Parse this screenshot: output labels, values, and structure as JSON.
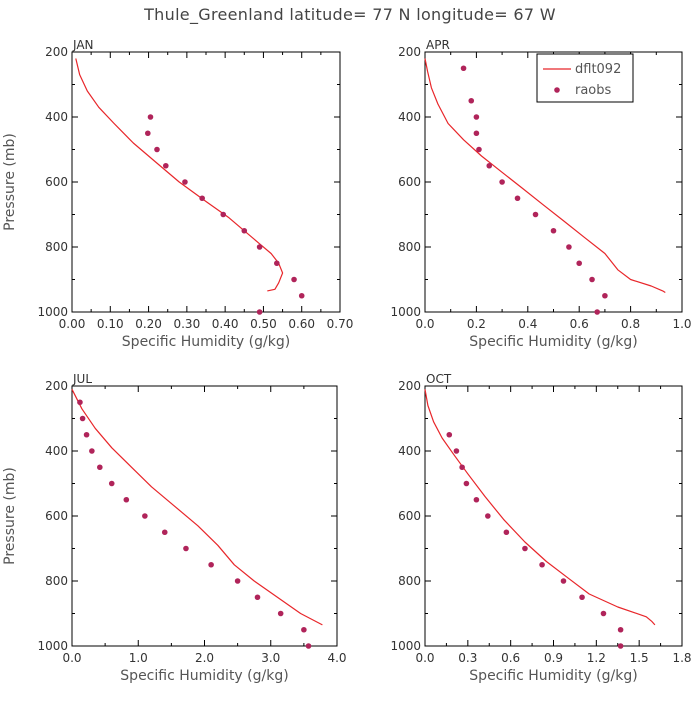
{
  "figure": {
    "title": "Thule_Greenland  latitude= 77 N longitude= 67 W",
    "colors": {
      "model": "#e8262a",
      "obs": "#b0245a",
      "axis": "#000000"
    }
  },
  "legend": {
    "model_label": "dflt092",
    "obs_label": "raobs"
  },
  "chart_data": [
    {
      "type": "line",
      "panel": "JAN",
      "xlabel": "Specific Humidity (g/kg)",
      "ylabel": "Pressure (mb)",
      "xlim": [
        0,
        0.7
      ],
      "ylim": [
        200,
        1000
      ],
      "y_inverted": true,
      "xticks": [
        0.0,
        0.1,
        0.2,
        0.3,
        0.4,
        0.5,
        0.6,
        0.7
      ],
      "xtick_labels": [
        "0.00",
        "0.10",
        "0.20",
        "0.30",
        "0.40",
        "0.50",
        "0.60",
        "0.70"
      ],
      "yticks": [
        200,
        400,
        600,
        800,
        1000
      ],
      "series": [
        {
          "name": "dflt092",
          "kind": "line",
          "points": [
            [
              0.01,
              220
            ],
            [
              0.02,
              270
            ],
            [
              0.04,
              320
            ],
            [
              0.07,
              370
            ],
            [
              0.11,
              420
            ],
            [
              0.16,
              480
            ],
            [
              0.22,
              540
            ],
            [
              0.28,
              600
            ],
            [
              0.35,
              660
            ],
            [
              0.41,
              710
            ],
            [
              0.45,
              750
            ],
            [
              0.49,
              790
            ],
            [
              0.52,
              820
            ],
            [
              0.54,
              850
            ],
            [
              0.55,
              880
            ],
            [
              0.54,
              910
            ],
            [
              0.53,
              930
            ],
            [
              0.51,
              935
            ]
          ]
        },
        {
          "name": "raobs",
          "kind": "scatter",
          "points": [
            [
              0.205,
              400
            ],
            [
              0.198,
              450
            ],
            [
              0.222,
              500
            ],
            [
              0.245,
              550
            ],
            [
              0.295,
              600
            ],
            [
              0.34,
              650
            ],
            [
              0.395,
              700
            ],
            [
              0.45,
              750
            ],
            [
              0.49,
              800
            ],
            [
              0.535,
              850
            ],
            [
              0.58,
              900
            ],
            [
              0.6,
              950
            ],
            [
              0.49,
              1000
            ]
          ]
        }
      ]
    },
    {
      "type": "line",
      "panel": "APR",
      "xlabel": "Specific Humidity (g/kg)",
      "ylabel": "",
      "xlim": [
        0,
        1.0
      ],
      "ylim": [
        200,
        1000
      ],
      "y_inverted": true,
      "xticks": [
        0.0,
        0.2,
        0.4,
        0.6,
        0.8,
        1.0
      ],
      "xtick_labels": [
        "0.0",
        "0.2",
        "0.4",
        "0.6",
        "0.8",
        "1.0"
      ],
      "yticks": [
        200,
        400,
        600,
        800,
        1000
      ],
      "series": [
        {
          "name": "dflt092",
          "kind": "line",
          "points": [
            [
              0.0,
              220
            ],
            [
              0.01,
              260
            ],
            [
              0.025,
              310
            ],
            [
              0.05,
              360
            ],
            [
              0.09,
              420
            ],
            [
              0.15,
              470
            ],
            [
              0.22,
              520
            ],
            [
              0.3,
              570
            ],
            [
              0.38,
              620
            ],
            [
              0.46,
              670
            ],
            [
              0.54,
              720
            ],
            [
              0.62,
              770
            ],
            [
              0.7,
              820
            ],
            [
              0.75,
              870
            ],
            [
              0.8,
              900
            ],
            [
              0.88,
              920
            ],
            [
              0.925,
              935
            ],
            [
              0.935,
              940
            ]
          ]
        },
        {
          "name": "raobs",
          "kind": "scatter",
          "points": [
            [
              0.15,
              250
            ],
            [
              0.18,
              350
            ],
            [
              0.2,
              400
            ],
            [
              0.2,
              450
            ],
            [
              0.21,
              500
            ],
            [
              0.25,
              550
            ],
            [
              0.3,
              600
            ],
            [
              0.36,
              650
            ],
            [
              0.43,
              700
            ],
            [
              0.5,
              750
            ],
            [
              0.56,
              800
            ],
            [
              0.6,
              850
            ],
            [
              0.65,
              900
            ],
            [
              0.7,
              950
            ],
            [
              0.67,
              1000
            ]
          ]
        }
      ]
    },
    {
      "type": "line",
      "panel": "JUL",
      "xlabel": "Specific Humidity (g/kg)",
      "ylabel": "Pressure (mb)",
      "xlim": [
        0,
        4.0
      ],
      "ylim": [
        200,
        1000
      ],
      "y_inverted": true,
      "xticks": [
        0.0,
        1.0,
        2.0,
        3.0,
        4.0
      ],
      "xtick_labels": [
        "0.0",
        "1.0",
        "2.0",
        "3.0",
        "4.0"
      ],
      "yticks": [
        200,
        400,
        600,
        800,
        1000
      ],
      "series": [
        {
          "name": "dflt092",
          "kind": "line",
          "points": [
            [
              0.0,
              210
            ],
            [
              0.15,
              270
            ],
            [
              0.35,
              330
            ],
            [
              0.6,
              390
            ],
            [
              0.9,
              450
            ],
            [
              1.2,
              510
            ],
            [
              1.55,
              570
            ],
            [
              1.9,
              630
            ],
            [
              2.2,
              690
            ],
            [
              2.45,
              750
            ],
            [
              2.75,
              800
            ],
            [
              3.1,
              850
            ],
            [
              3.45,
              900
            ],
            [
              3.78,
              935
            ]
          ]
        },
        {
          "name": "raobs",
          "kind": "scatter",
          "points": [
            [
              0.12,
              250
            ],
            [
              0.16,
              300
            ],
            [
              0.22,
              350
            ],
            [
              0.3,
              400
            ],
            [
              0.42,
              450
            ],
            [
              0.6,
              500
            ],
            [
              0.82,
              550
            ],
            [
              1.1,
              600
            ],
            [
              1.4,
              650
            ],
            [
              1.72,
              700
            ],
            [
              2.1,
              750
            ],
            [
              2.5,
              800
            ],
            [
              2.8,
              850
            ],
            [
              3.15,
              900
            ],
            [
              3.5,
              950
            ],
            [
              3.57,
              1000
            ]
          ]
        }
      ]
    },
    {
      "type": "line",
      "panel": "OCT",
      "xlabel": "Specific Humidity (g/kg)",
      "ylabel": "",
      "xlim": [
        0,
        1.8
      ],
      "ylim": [
        200,
        1000
      ],
      "y_inverted": true,
      "xticks": [
        0.0,
        0.3,
        0.6,
        0.9,
        1.2,
        1.5,
        1.8
      ],
      "xtick_labels": [
        "0.0",
        "0.3",
        "0.6",
        "0.9",
        "1.2",
        "1.5",
        "1.8"
      ],
      "yticks": [
        200,
        400,
        600,
        800,
        1000
      ],
      "series": [
        {
          "name": "dflt092",
          "kind": "line",
          "points": [
            [
              0.0,
              210
            ],
            [
              0.02,
              260
            ],
            [
              0.06,
              310
            ],
            [
              0.12,
              360
            ],
            [
              0.2,
              410
            ],
            [
              0.3,
              470
            ],
            [
              0.42,
              540
            ],
            [
              0.55,
              610
            ],
            [
              0.7,
              680
            ],
            [
              0.85,
              740
            ],
            [
              1.0,
              790
            ],
            [
              1.15,
              840
            ],
            [
              1.35,
              880
            ],
            [
              1.55,
              910
            ],
            [
              1.59,
              925
            ],
            [
              1.61,
              935
            ]
          ]
        },
        {
          "name": "raobs",
          "kind": "scatter",
          "points": [
            [
              0.17,
              350
            ],
            [
              0.22,
              400
            ],
            [
              0.26,
              450
            ],
            [
              0.29,
              500
            ],
            [
              0.36,
              550
            ],
            [
              0.44,
              600
            ],
            [
              0.57,
              650
            ],
            [
              0.7,
              700
            ],
            [
              0.82,
              750
            ],
            [
              0.97,
              800
            ],
            [
              1.1,
              850
            ],
            [
              1.25,
              900
            ],
            [
              1.37,
              950
            ],
            [
              1.37,
              1000
            ]
          ]
        }
      ]
    }
  ]
}
